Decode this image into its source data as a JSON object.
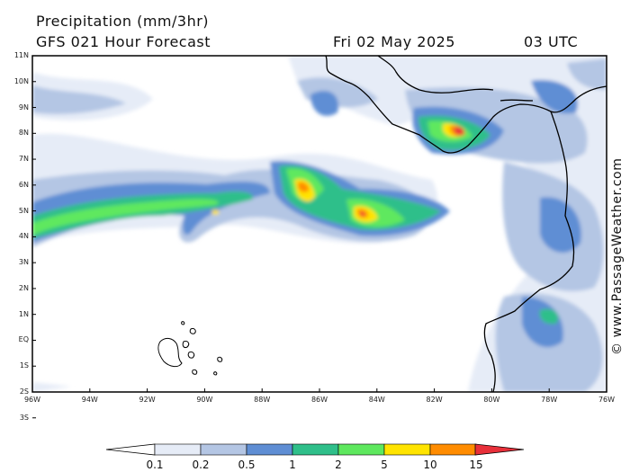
{
  "header": {
    "title": "Precipitation (mm/3hr)",
    "subtitle": "GFS 021 Hour Forecast",
    "date": "Fri 02 May 2025",
    "time": "03 UTC"
  },
  "watermark": "© www.PassageWeather.com",
  "axes": {
    "lat_labels": [
      "11N",
      "10N",
      "9N",
      "8N",
      "7N",
      "6N",
      "5N",
      "4N",
      "3N",
      "2N",
      "1N",
      "EQ",
      "1S",
      "2S",
      "3S"
    ],
    "lon_labels": [
      "96W",
      "94W",
      "92W",
      "90W",
      "88W",
      "86W",
      "84W",
      "82W",
      "80W",
      "78W",
      "76W"
    ]
  },
  "legend": {
    "labels": [
      "0.1",
      "0.2",
      "0.5",
      "1",
      "2",
      "5",
      "10",
      "15"
    ],
    "colors": [
      "#ffffff",
      "#e6ecf7",
      "#b4c6e4",
      "#5f8ed4",
      "#2fbf8a",
      "#5ee85e",
      "#ffe400",
      "#ff8c00",
      "#e8303a"
    ]
  }
}
